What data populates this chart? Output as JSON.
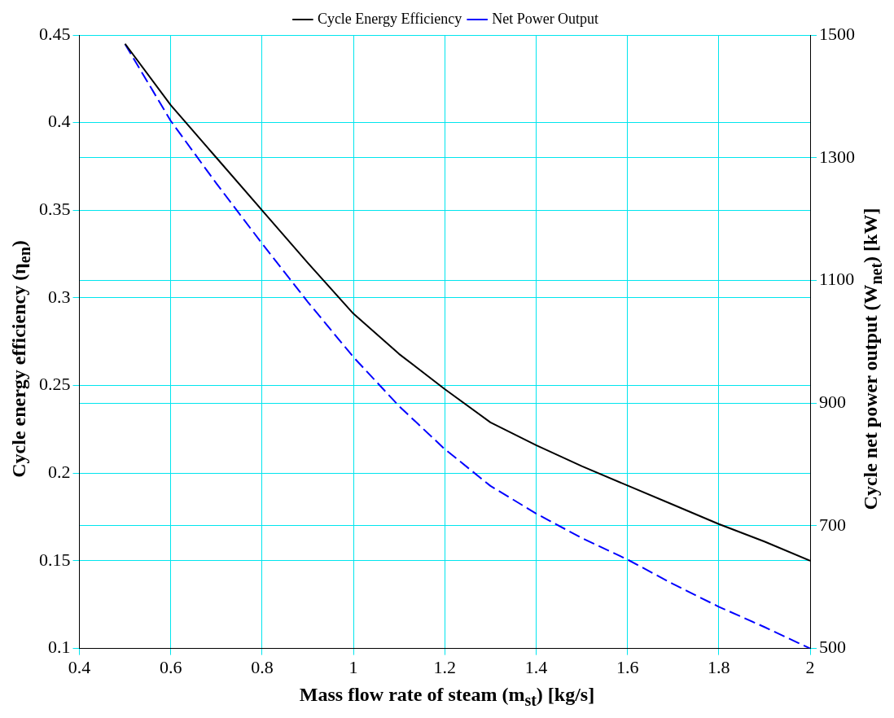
{
  "chart_data": {
    "type": "line",
    "xlabel": "Mass flow rate of steam (m$_{st}$) [kg/s]",
    "ylabel": "Cycle energy efficiency (η$_{en}$)",
    "y2label": "Cycle net power output (W$_{net}$) [kW]",
    "xlim": [
      0.4,
      2
    ],
    "xticks": [
      0.4,
      0.6,
      0.8,
      1,
      1.2,
      1.4,
      1.6,
      1.8,
      2
    ],
    "ylim": [
      0.1,
      0.45
    ],
    "yticks": [
      0.1,
      0.15,
      0.2,
      0.25,
      0.3,
      0.35,
      0.4,
      0.45
    ],
    "y2lim": [
      500,
      1500
    ],
    "y2ticks": [
      500,
      700,
      900,
      1100,
      1300,
      1500
    ],
    "grid": true,
    "legend": "top",
    "marker": "none",
    "series": [
      {
        "name": "Cycle Energy Efficiency",
        "color": "#000000",
        "line_style": "solid",
        "x": [
          0.5,
          0.6,
          0.7,
          0.8,
          0.9,
          1,
          1.1,
          1.2,
          1.3,
          1.4,
          1.5,
          1.6,
          1.7,
          1.8,
          1.9,
          2
        ],
        "values": [
          0.445,
          0.41,
          0.38,
          0.35,
          0.32,
          0.291,
          0.268,
          0.248,
          0.229,
          0.216,
          0.204,
          0.193,
          0.182,
          0.171,
          0.161,
          0.15
        ]
      },
      {
        "name": "Net Power Output",
        "color": "#0000ff",
        "line_style": "dashed",
        "axis": "y2",
        "x": [
          0.5,
          0.6,
          0.7,
          0.8,
          0.9,
          1,
          1.1,
          1.2,
          1.3,
          1.4,
          1.5,
          1.6,
          1.7,
          1.8,
          1.9,
          2
        ],
        "values": [
          1485,
          1360,
          1258,
          1160,
          1065,
          975,
          895,
          825,
          765,
          720,
          680,
          645,
          605,
          568,
          535,
          500
        ]
      }
    ]
  }
}
